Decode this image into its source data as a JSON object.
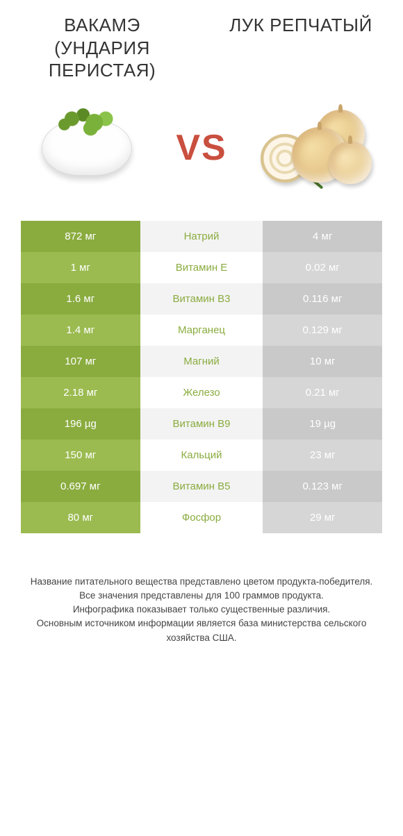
{
  "left_title": "ВАКАМЭ (УНДАРИЯ ПЕРИСТАЯ)",
  "right_title": "ЛУК РЕПЧАТЫЙ",
  "vs": "VS",
  "colors": {
    "left_primary": "#8aac3f",
    "left_secondary": "#9bbb50",
    "right_primary": "#c94f3f",
    "right_secondary": "#d25f4f",
    "mid_odd": "#f3f3f3",
    "mid_even": "#ffffff",
    "gray_odd": "#c9c9c9",
    "gray_even": "#d6d6d6",
    "text_dark": "#333333"
  },
  "table": {
    "type": "comparison-table",
    "columns": [
      "left_value",
      "nutrient",
      "right_value"
    ],
    "rows": [
      {
        "left": "872 мг",
        "mid": "Натрий",
        "right": "4 мг",
        "winner": "left"
      },
      {
        "left": "1 мг",
        "mid": "Витамин E",
        "right": "0.02 мг",
        "winner": "left"
      },
      {
        "left": "1.6 мг",
        "mid": "Витамин B3",
        "right": "0.116 мг",
        "winner": "left"
      },
      {
        "left": "1.4 мг",
        "mid": "Марганец",
        "right": "0.129 мг",
        "winner": "left"
      },
      {
        "left": "107 мг",
        "mid": "Магний",
        "right": "10 мг",
        "winner": "left"
      },
      {
        "left": "2.18 мг",
        "mid": "Железо",
        "right": "0.21 мг",
        "winner": "left"
      },
      {
        "left": "196 µg",
        "mid": "Витамин B9",
        "right": "19 µg",
        "winner": "left"
      },
      {
        "left": "150 мг",
        "mid": "Кальций",
        "right": "23 мг",
        "winner": "left"
      },
      {
        "left": "0.697 мг",
        "mid": "Витамин B5",
        "right": "0.123 мг",
        "winner": "left"
      },
      {
        "left": "80 мг",
        "mid": "Фосфор",
        "right": "29 мг",
        "winner": "left"
      }
    ]
  },
  "footer": {
    "l1": "Название питательного вещества представлено цветом продукта-победителя.",
    "l2": "Все значения представлены для 100 граммов продукта.",
    "l3": "Инфографика показывает только существенные различия.",
    "l4": "Основным источником информации является база министерства сельского хозяйства США."
  }
}
